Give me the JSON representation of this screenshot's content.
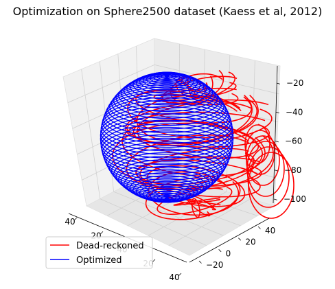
{
  "chart_data": {
    "type": "line",
    "projection": "3d",
    "title": "Optimization on Sphere2500 dataset (Kaess et al, 2012)",
    "xlabel": "",
    "ylabel": "",
    "zlabel": "",
    "x_ticks": [
      "40",
      "20",
      "40",
      "20",
      "40"
    ],
    "y_ticks": [
      "40",
      "20",
      "0",
      "−20"
    ],
    "z_ticks": [
      "−20",
      "−40",
      "−60",
      "−80",
      "−100"
    ],
    "xlim": [
      -50,
      50
    ],
    "ylim": [
      -40,
      55
    ],
    "zlim": [
      -105,
      -10
    ],
    "grid": true,
    "legend_position": "lower-left",
    "series": [
      {
        "name": "Dead-reckoned",
        "color": "#ff0000",
        "shape": "distorted sphere of stacked loops, drifting toward +x/-z",
        "center": [
          8,
          5,
          -62
        ],
        "radius": 48,
        "rings": 28
      },
      {
        "name": "Optimized",
        "color": "#0000ff",
        "shape": "sphere of stacked horizontal rings",
        "center": [
          0,
          0,
          -58
        ],
        "radius": 45,
        "rings": 56
      }
    ]
  }
}
